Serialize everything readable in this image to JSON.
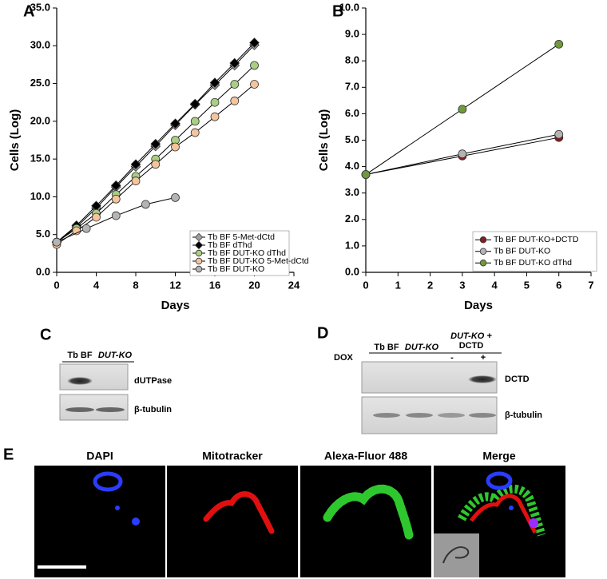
{
  "chart_data": [
    {
      "type": "line",
      "panel": "A",
      "xlabel": "Days",
      "ylabel": "Cells (Log)",
      "xlim": [
        0,
        24
      ],
      "xticks": [
        0,
        4,
        8,
        12,
        16,
        20,
        24
      ],
      "ylim": [
        0,
        35
      ],
      "yticks": [
        {
          "value": 0,
          "label": "0.0"
        },
        {
          "value": 5,
          "label": "5.0"
        },
        {
          "value": 10,
          "label": "10.0"
        },
        {
          "value": 15,
          "label": "15.0"
        },
        {
          "value": 20,
          "label": "20.0"
        },
        {
          "value": 25,
          "label": "25.0"
        },
        {
          "value": 30,
          "label": "30.0"
        },
        {
          "value": 35,
          "label": "35.0"
        }
      ],
      "legend": "lower right",
      "series": [
        {
          "name": "Tb BF 5-Met-dCtd",
          "color": "#a0a0a0",
          "marker": "diamond",
          "x": [
            0,
            2,
            4,
            6,
            8,
            10,
            12,
            14,
            16,
            18,
            20
          ],
          "values": [
            4.0,
            6.0,
            8.5,
            11.3,
            14.0,
            16.7,
            19.5,
            22.2,
            24.8,
            27.4,
            30.1
          ]
        },
        {
          "name": "Tb BF dThd",
          "color": "#000000",
          "marker": "diamond",
          "x": [
            0,
            2,
            4,
            6,
            8,
            10,
            12,
            14,
            16,
            18,
            20
          ],
          "values": [
            4.0,
            6.2,
            8.8,
            11.5,
            14.3,
            17.0,
            19.7,
            22.3,
            25.1,
            27.7,
            30.4
          ]
        },
        {
          "name": "Tb BF DUT-KO dThd",
          "color": "#a9cf82",
          "marker": "circle",
          "x": [
            0,
            2,
            4,
            6,
            8,
            10,
            12,
            14,
            16,
            18,
            20
          ],
          "values": [
            4.0,
            5.8,
            7.8,
            10.3,
            12.7,
            15.0,
            17.5,
            20.0,
            22.5,
            24.9,
            27.4
          ]
        },
        {
          "name": "Tb BF DUT-KO 5-Met-dCtd",
          "color": "#f6c49b",
          "marker": "circle",
          "x": [
            0,
            2,
            4,
            6,
            8,
            10,
            12,
            14,
            16,
            18,
            20
          ],
          "values": [
            3.7,
            5.5,
            7.3,
            9.7,
            12.1,
            14.3,
            16.6,
            18.5,
            20.6,
            22.7,
            24.9
          ]
        },
        {
          "name": "Tb BF DUT-KO",
          "color": "#b4b4b4",
          "marker": "circle",
          "x": [
            0,
            3,
            6,
            9,
            12
          ],
          "values": [
            4.0,
            5.8,
            7.5,
            9.0,
            9.9
          ]
        }
      ]
    },
    {
      "type": "line",
      "panel": "B",
      "xlabel": "Days",
      "ylabel": "Cells (Log)",
      "xlim": [
        0,
        7
      ],
      "xticks": [
        0,
        1,
        2,
        3,
        4,
        5,
        6,
        7
      ],
      "ylim": [
        0,
        10
      ],
      "yticks": [
        {
          "value": 0,
          "label": "0.0"
        },
        {
          "value": 1,
          "label": "1.0"
        },
        {
          "value": 2,
          "label": "2.0"
        },
        {
          "value": 3,
          "label": "3.0"
        },
        {
          "value": 4,
          "label": "4.0"
        },
        {
          "value": 5,
          "label": "5.0"
        },
        {
          "value": 6,
          "label": "6.0"
        },
        {
          "value": 7,
          "label": "7.0"
        },
        {
          "value": 8,
          "label": "8.0"
        },
        {
          "value": 9,
          "label": "9.0"
        },
        {
          "value": 10,
          "label": "10.0"
        }
      ],
      "legend": "lower right",
      "series": [
        {
          "name": "Tb BF DUT-KO+DCTD",
          "color": "#8b1a1a",
          "marker": "circle",
          "x": [
            0,
            3,
            6
          ],
          "values": [
            3.7,
            4.4,
            5.1
          ]
        },
        {
          "name": "Tb BF DUT-KO",
          "color": "#b4b4b4",
          "marker": "circle",
          "x": [
            0,
            3,
            6
          ],
          "values": [
            3.7,
            4.48,
            5.22
          ]
        },
        {
          "name": "Tb BF DUT-KO dThd",
          "color": "#6f9a3c",
          "marker": "circle",
          "x": [
            0,
            3,
            6
          ],
          "values": [
            3.7,
            6.17,
            8.63
          ]
        }
      ]
    }
  ],
  "panel_c": {
    "letter": "C",
    "lanes": [
      "Tb BF",
      "DUT-KO"
    ],
    "rows": [
      "dUTPase",
      "β-tubulin"
    ]
  },
  "panel_d": {
    "letter": "D",
    "lanes": [
      "Tb BF",
      "DUT-KO"
    ],
    "group": [
      "DUT-KO +",
      "DCTD"
    ],
    "dox_label": "DOX",
    "dox": [
      "-",
      "+"
    ],
    "rows": [
      "DCTD",
      "β-tubulin"
    ]
  },
  "panel_e": {
    "letter": "E",
    "images": [
      "DAPI",
      "Mitotracker",
      "Alexa-Fluor 488",
      "Merge"
    ]
  }
}
